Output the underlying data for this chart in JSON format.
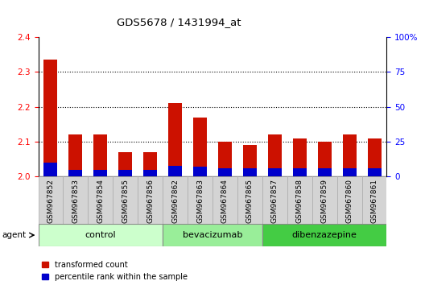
{
  "title": "GDS5678 / 1431994_at",
  "samples": [
    "GSM967852",
    "GSM967853",
    "GSM967854",
    "GSM967855",
    "GSM967856",
    "GSM967862",
    "GSM967863",
    "GSM967864",
    "GSM967865",
    "GSM967857",
    "GSM967858",
    "GSM967859",
    "GSM967860",
    "GSM967861"
  ],
  "transformed_count": [
    2.335,
    2.12,
    2.12,
    2.07,
    2.07,
    2.21,
    2.17,
    2.1,
    2.09,
    2.12,
    2.11,
    2.1,
    2.12,
    2.11
  ],
  "percentile_rank": [
    10,
    5,
    5,
    5,
    5,
    8,
    7,
    6,
    6,
    6,
    6,
    6,
    6,
    6
  ],
  "groups": [
    {
      "name": "control",
      "count": 5,
      "color": "#ccffcc"
    },
    {
      "name": "bevacizumab",
      "count": 4,
      "color": "#99ee99"
    },
    {
      "name": "dibenzazepine",
      "count": 5,
      "color": "#44cc44"
    }
  ],
  "ylim_left": [
    2.0,
    2.4
  ],
  "ylim_right": [
    0,
    100
  ],
  "yticks_left": [
    2.0,
    2.1,
    2.2,
    2.3,
    2.4
  ],
  "yticks_right": [
    0,
    25,
    50,
    75,
    100
  ],
  "ytick_labels_right": [
    "0",
    "25",
    "50",
    "75",
    "100%"
  ],
  "bar_color_red": "#cc1100",
  "bar_color_blue": "#0000cc",
  "bar_width": 0.55,
  "background_color": "#ffffff",
  "agent_label": "agent",
  "legend_items": [
    {
      "label": "transformed count",
      "color": "#cc1100"
    },
    {
      "label": "percentile rank within the sample",
      "color": "#0000cc"
    }
  ]
}
